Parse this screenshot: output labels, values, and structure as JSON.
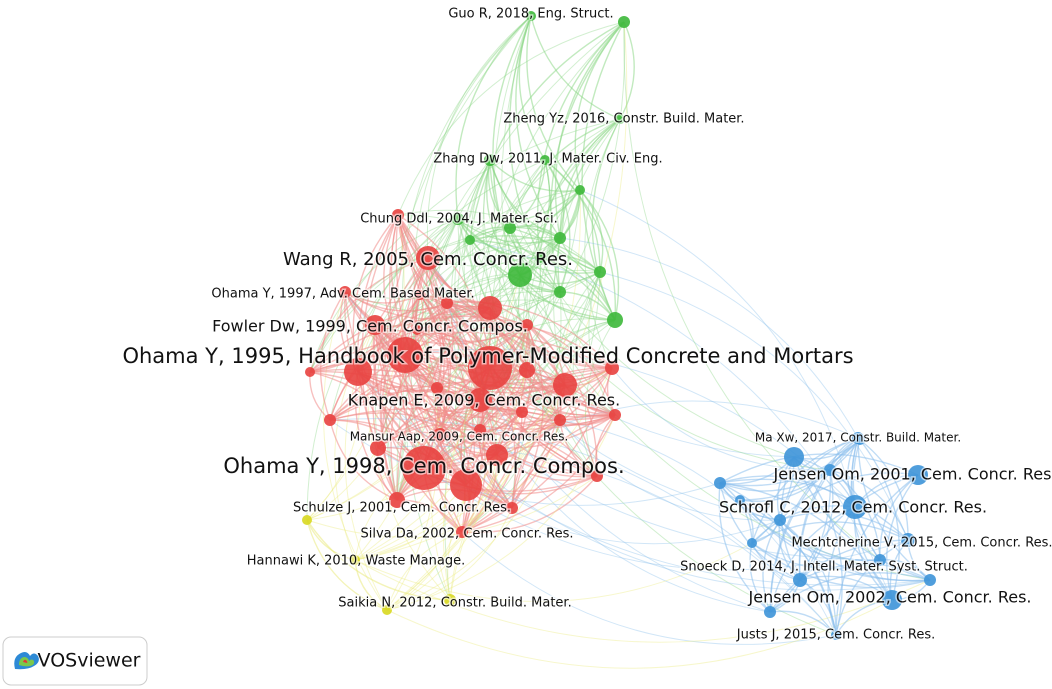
{
  "nodes": [
    {
      "label": "Guo R, 2018, Eng. Struct."
    },
    {
      "label": "Zheng Yz, 2016, Constr. Build. Mater."
    },
    {
      "label": "Zhang Dw, 2011, J. Mater. Civ. Eng."
    },
    {
      "label": "Chung Ddl, 2004, J. Mater. Sci."
    },
    {
      "label": "Wang R, 2005, Cem. Concr. Res."
    },
    {
      "label": "Ohama Y, 1997, Adv. Cem. Based Mater."
    },
    {
      "label": "Fowler Dw, 1999, Cem. Concr. Compos."
    },
    {
      "label": "Ohama Y, 1995, Handbook of Polymer-Modified Concrete and Mortars"
    },
    {
      "label": "Knapen E, 2009, Cem. Concr. Res."
    },
    {
      "label": "Mansur Aap, 2009, Cem. Concr. Res."
    },
    {
      "label": "Ohama Y, 1998, Cem. Concr. Compos."
    },
    {
      "label": "Schulze J, 2001, Cem. Concr. Res."
    },
    {
      "label": "Silva Da, 2002, Cem. Concr. Res."
    },
    {
      "label": "Hannawi K, 2010, Waste Manage."
    },
    {
      "label": "Saikia N, 2012, Constr. Build. Mater."
    },
    {
      "label": "Ma Xw, 2017, Constr. Build. Mater."
    },
    {
      "label": "Jensen Om, 2001, Cem. Concr. Res."
    },
    {
      "label": "Schrofl C, 2012, Cem. Concr. Res."
    },
    {
      "label": "Mechtcherine V, 2015, Cem. Concr. Res."
    },
    {
      "label": "Snoeck D, 2014, J. Intell. Mater. Syst. Struct."
    },
    {
      "label": "Jensen Om, 2002, Cem. Concr. Res."
    },
    {
      "label": "Justs J, 2015, Cem. Concr. Res."
    }
  ],
  "logo": "VOSviewer"
}
